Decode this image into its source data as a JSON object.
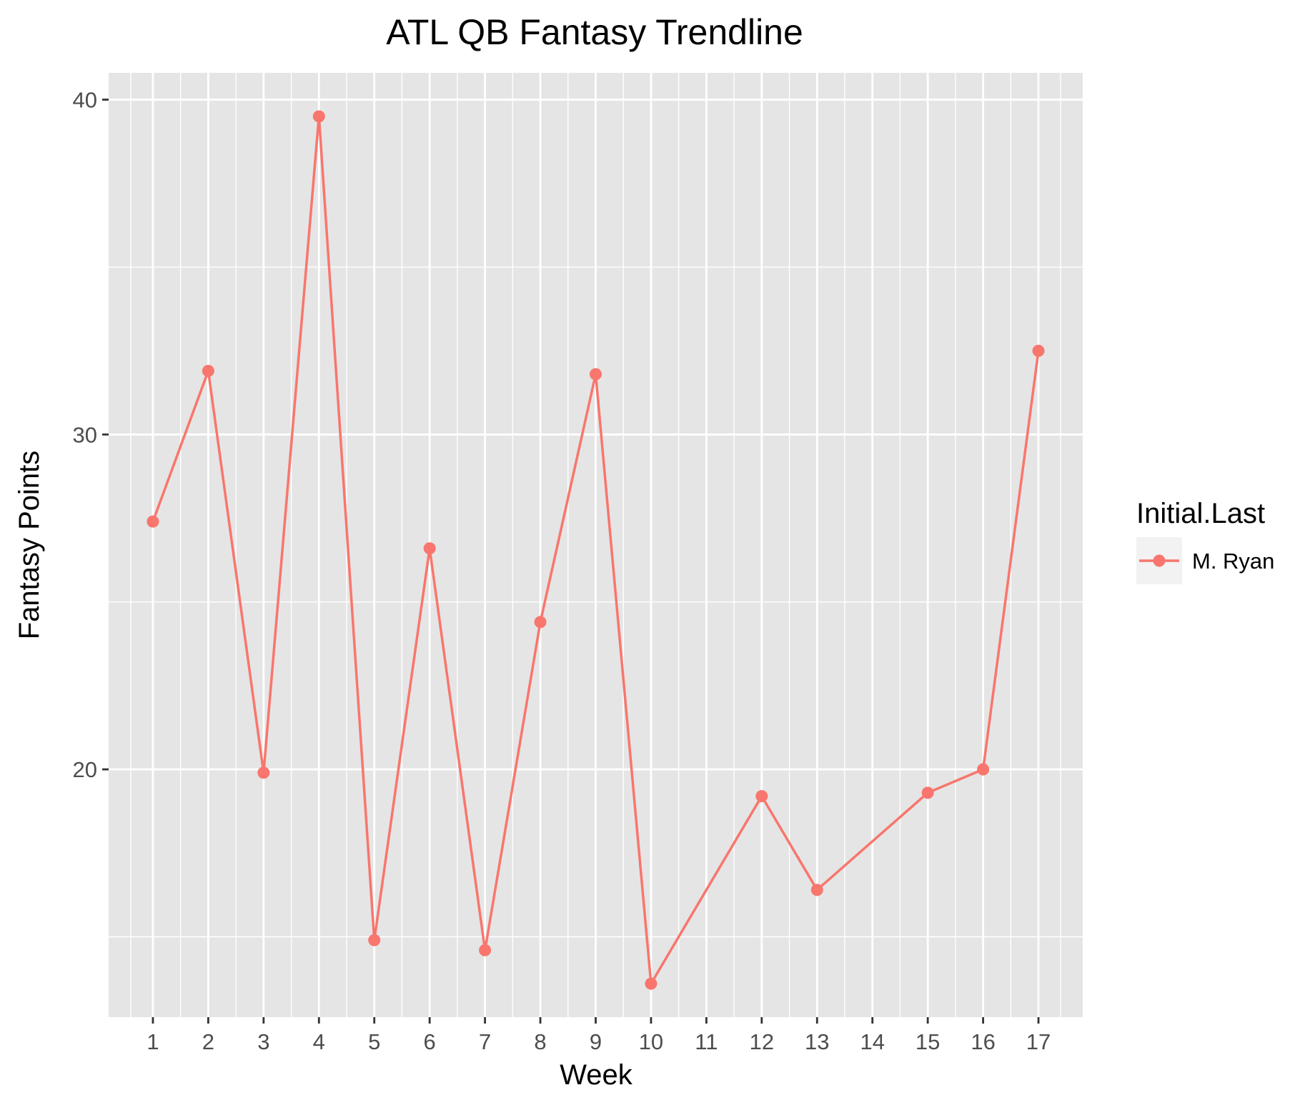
{
  "chart_data": {
    "type": "line",
    "title": "ATL QB Fantasy Trendline",
    "xlabel": "Week",
    "ylabel": "Fantasy Points",
    "x": [
      1,
      2,
      3,
      4,
      5,
      6,
      7,
      8,
      9,
      10,
      12,
      13,
      15,
      16,
      17
    ],
    "x_ticks": [
      1,
      2,
      3,
      4,
      5,
      6,
      7,
      8,
      9,
      10,
      11,
      12,
      13,
      14,
      15,
      16,
      17
    ],
    "xlim": [
      0.2,
      17.8
    ],
    "y_ticks": [
      20,
      30,
      40
    ],
    "ylim": [
      12.6,
      40.8
    ],
    "grid": true,
    "legend_title": "Initial.Last",
    "legend_position": "right",
    "series": [
      {
        "name": "M. Ryan",
        "color": "#f8766d",
        "values": [
          27.4,
          31.9,
          19.9,
          39.5,
          14.9,
          26.6,
          14.6,
          24.4,
          31.8,
          13.6,
          19.2,
          16.4,
          19.3,
          20.0,
          32.5
        ]
      }
    ]
  }
}
